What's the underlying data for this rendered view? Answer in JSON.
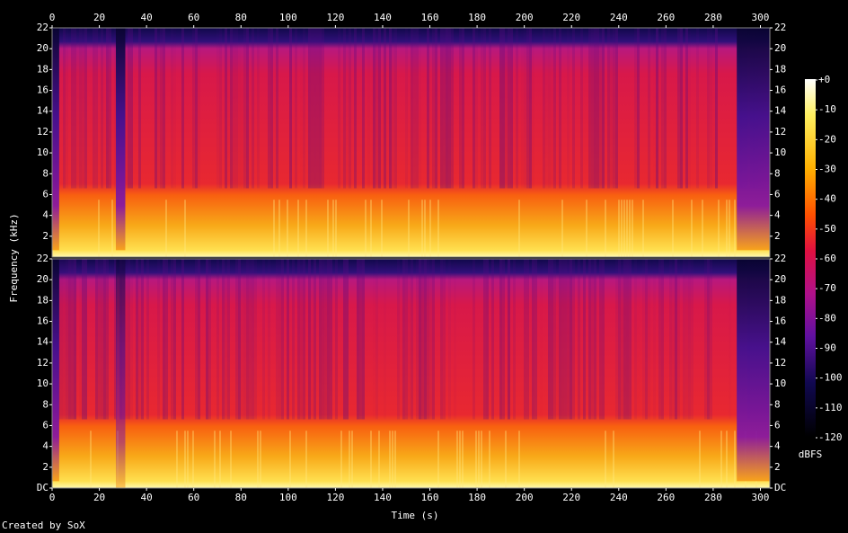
{
  "chart_data": [
    {
      "type": "spectrogram",
      "ylabel": "Frequency (kHz)",
      "xlim": [
        0,
        304
      ],
      "xticks": [
        0,
        20,
        40,
        60,
        80,
        100,
        120,
        140,
        160,
        180,
        200,
        220,
        240,
        260,
        280,
        300
      ],
      "ylim": [
        0,
        22
      ],
      "yticks": [
        2,
        4,
        6,
        8,
        10,
        12,
        14,
        16,
        18,
        20,
        22
      ]
    },
    {
      "type": "spectrogram",
      "xlabel": "Time (s)",
      "xlim": [
        0,
        304
      ],
      "xticks": [
        0,
        20,
        40,
        60,
        80,
        100,
        120,
        140,
        160,
        180,
        200,
        220,
        240,
        260,
        280,
        300
      ],
      "ylim": [
        0,
        22
      ],
      "yticks": [
        {
          "value": 0,
          "label": "DC"
        },
        2,
        4,
        6,
        8,
        10,
        12,
        14,
        16,
        18,
        20,
        22
      ]
    }
  ],
  "colorbar": {
    "label": "dBFS",
    "lim": [
      -120,
      0
    ],
    "ticks": [
      {
        "value": 0,
        "label": "+0"
      },
      -10,
      -20,
      -30,
      -40,
      -50,
      -60,
      -70,
      -80,
      -90,
      -100,
      -110,
      -120
    ]
  },
  "footer": "Created by SoX"
}
